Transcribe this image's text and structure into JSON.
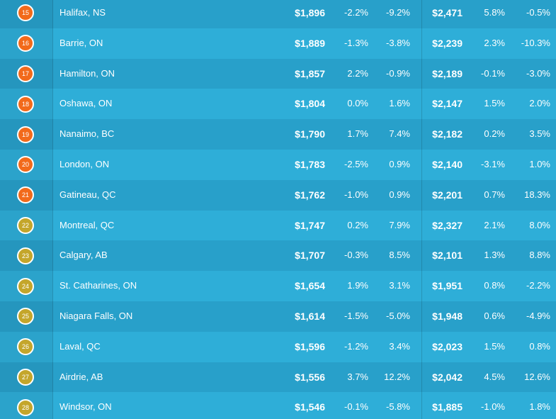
{
  "table": {
    "rows": [
      [
        "15",
        "Halifax, NS",
        "$1,896",
        "-2.2%",
        "-9.2%",
        "$2,471",
        "5.8%",
        "-0.5%"
      ],
      [
        "16",
        "Barrie, ON",
        "$1,889",
        "-1.3%",
        "-3.8%",
        "$2,239",
        "2.3%",
        "-10.3%"
      ],
      [
        "17",
        "Hamilton, ON",
        "$1,857",
        "2.2%",
        "-0.9%",
        "$2,189",
        "-0.1%",
        "-3.0%"
      ],
      [
        "18",
        "Oshawa, ON",
        "$1,804",
        "0.0%",
        "1.6%",
        "$2,147",
        "1.5%",
        "2.0%"
      ],
      [
        "19",
        "Nanaimo, BC",
        "$1,790",
        "1.7%",
        "7.4%",
        "$2,182",
        "0.2%",
        "3.5%"
      ],
      [
        "20",
        "London, ON",
        "$1,783",
        "-2.5%",
        "0.9%",
        "$2,140",
        "-3.1%",
        "1.0%"
      ],
      [
        "21",
        "Gatineau, QC",
        "$1,762",
        "-1.0%",
        "0.9%",
        "$2,201",
        "0.7%",
        "18.3%"
      ],
      [
        "22",
        "Montreal, QC",
        "$1,747",
        "0.2%",
        "7.9%",
        "$2,327",
        "2.1%",
        "8.0%"
      ],
      [
        "23",
        "Calgary, AB",
        "$1,707",
        "-0.3%",
        "8.5%",
        "$2,101",
        "1.3%",
        "8.8%"
      ],
      [
        "24",
        "St. Catharines, ON",
        "$1,654",
        "1.9%",
        "3.1%",
        "$1,951",
        "0.8%",
        "-2.2%"
      ],
      [
        "25",
        "Niagara Falls, ON",
        "$1,614",
        "-1.5%",
        "-5.0%",
        "$1,948",
        "0.6%",
        "-4.9%"
      ],
      [
        "26",
        "Laval, QC",
        "$1,596",
        "-1.2%",
        "3.4%",
        "$2,023",
        "1.5%",
        "0.8%"
      ],
      [
        "27",
        "Airdrie, AB",
        "$1,556",
        "3.7%",
        "12.2%",
        "$2,042",
        "4.5%",
        "12.6%"
      ],
      [
        "28",
        "Windsor, ON",
        "$1,546",
        "-0.1%",
        "-5.8%",
        "$1,885",
        "-1.0%",
        "1.8%"
      ]
    ]
  }
}
